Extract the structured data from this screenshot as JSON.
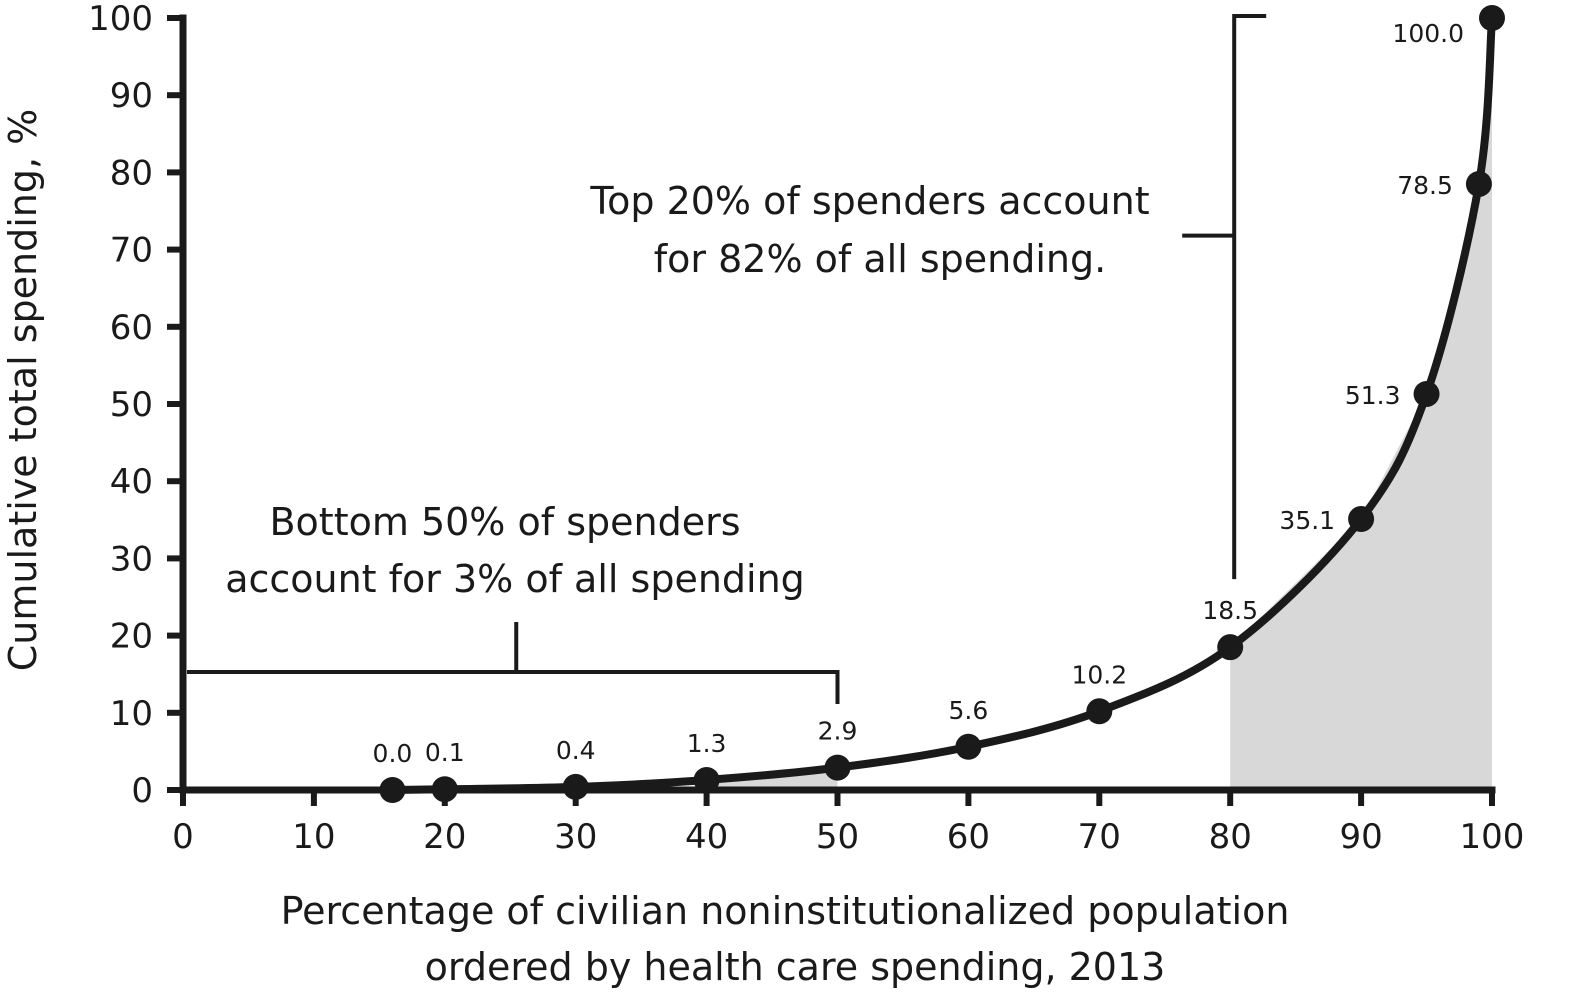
{
  "chart_data": {
    "type": "line",
    "xlabel_lines": [
      "Percentage of civilian noninstitutionalized population",
      "ordered by health care spending, 2013"
    ],
    "ylabel": "Cumulative total spending, %",
    "xlim": [
      0,
      100
    ],
    "ylim": [
      0,
      100
    ],
    "x_ticks": [
      0,
      10,
      20,
      30,
      40,
      50,
      60,
      70,
      80,
      90,
      100
    ],
    "y_ticks": [
      0,
      10,
      20,
      30,
      40,
      50,
      60,
      70,
      80,
      90,
      100
    ],
    "grid": false,
    "points": [
      {
        "x": 16,
        "y": 0.0,
        "label": "0.0"
      },
      {
        "x": 20,
        "y": 0.1,
        "label": "0.1"
      },
      {
        "x": 30,
        "y": 0.4,
        "label": "0.4"
      },
      {
        "x": 40,
        "y": 1.3,
        "label": "1.3"
      },
      {
        "x": 50,
        "y": 2.9,
        "label": "2.9"
      },
      {
        "x": 60,
        "y": 5.6,
        "label": "5.6"
      },
      {
        "x": 70,
        "y": 10.2,
        "label": "10.2"
      },
      {
        "x": 80,
        "y": 18.5,
        "label": "18.5"
      },
      {
        "x": 90,
        "y": 35.1,
        "label": "35.1"
      },
      {
        "x": 95,
        "y": 51.3,
        "label": "51.3"
      },
      {
        "x": 99,
        "y": 78.5,
        "label": "78.5"
      },
      {
        "x": 100,
        "y": 100.0,
        "label": "100.0"
      }
    ],
    "shaded_regions": [
      {
        "x_from": 40,
        "x_to": 50
      },
      {
        "x_from": 80,
        "x_to": 100
      }
    ],
    "annotations": {
      "bottom": {
        "lines": [
          "Bottom 50% of spenders",
          "account for 3% of all spending"
        ],
        "bracket_x": [
          0,
          50
        ]
      },
      "top": {
        "lines": [
          "Top 20% of spenders account",
          "for 82% of all spending."
        ],
        "bracket_y": [
          18.5,
          100
        ]
      }
    }
  },
  "colors": {
    "ink": "#1a1a1a",
    "shade": "#d8d8d8",
    "background": "#ffffff"
  }
}
